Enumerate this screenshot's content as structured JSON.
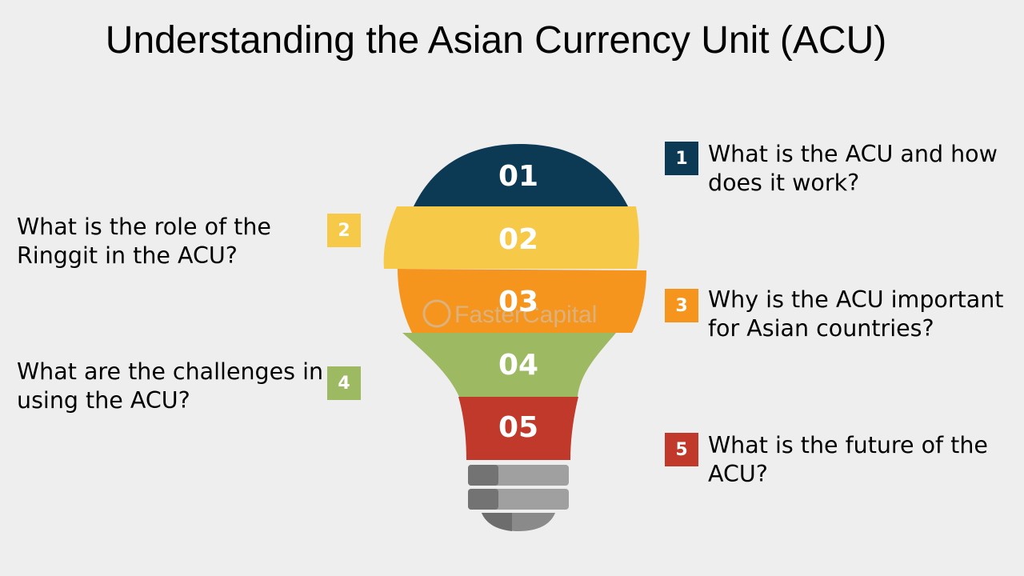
{
  "title": "Understanding the Asian Currency Unit (ACU)",
  "watermark": "FasterCapital",
  "colors": {
    "navy": "#0c3a55",
    "yellow": "#f7c948",
    "orange": "#f5951e",
    "green": "#9dba62",
    "red": "#c0392b",
    "base_gray": "#8e8e8e"
  },
  "segments": [
    {
      "number": "01",
      "color": "#0c3a55"
    },
    {
      "number": "02",
      "color": "#f7c948"
    },
    {
      "number": "03",
      "color": "#f5951e"
    },
    {
      "number": "04",
      "color": "#9dba62"
    },
    {
      "number": "05",
      "color": "#c0392b"
    }
  ],
  "questions": [
    {
      "badge": "1",
      "color": "#0c3a55",
      "lines": [
        "What is the ACU and how",
        "does it work?"
      ]
    },
    {
      "badge": "2",
      "color": "#f7c948",
      "lines": [
        "What is the role of the",
        "Ringgit in the ACU?"
      ]
    },
    {
      "badge": "3",
      "color": "#f5951e",
      "lines": [
        "Why is the ACU important",
        "for Asian countries?"
      ]
    },
    {
      "badge": "4",
      "color": "#9dba62",
      "lines": [
        "What are the challenges in",
        "using the ACU?"
      ]
    },
    {
      "badge": "5",
      "color": "#c0392b",
      "lines": [
        "What is the future of the",
        "ACU?"
      ]
    }
  ]
}
